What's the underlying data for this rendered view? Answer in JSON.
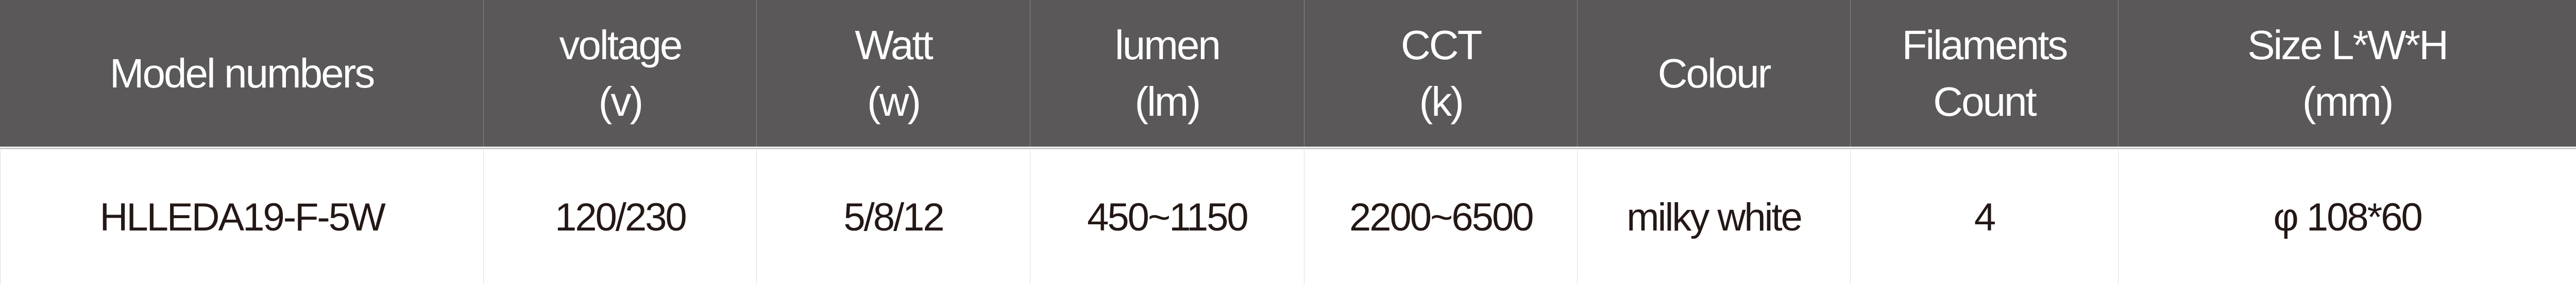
{
  "header": [
    {
      "line1": "Model numbers",
      "line2": ""
    },
    {
      "line1": "voltage",
      "line2": "(v)"
    },
    {
      "line1": "Watt",
      "line2": "(w)"
    },
    {
      "line1": "lumen",
      "line2": "(lm)"
    },
    {
      "line1": "CCT",
      "line2": "(k)"
    },
    {
      "line1": "Colour",
      "line2": ""
    },
    {
      "line1": "Filaments",
      "line2": "Count"
    },
    {
      "line1": "Size L*W*H",
      "line2": "(mm)"
    }
  ],
  "row": [
    "HLLEDA19-F-5W",
    "120/230",
    "5/8/12",
    "450~1150",
    "2200~6500",
    "milky white",
    "4",
    "φ 108*60"
  ],
  "colors": {
    "header_bg": "#5a5859",
    "header_text": "#ffffff",
    "body_text": "#231815"
  }
}
